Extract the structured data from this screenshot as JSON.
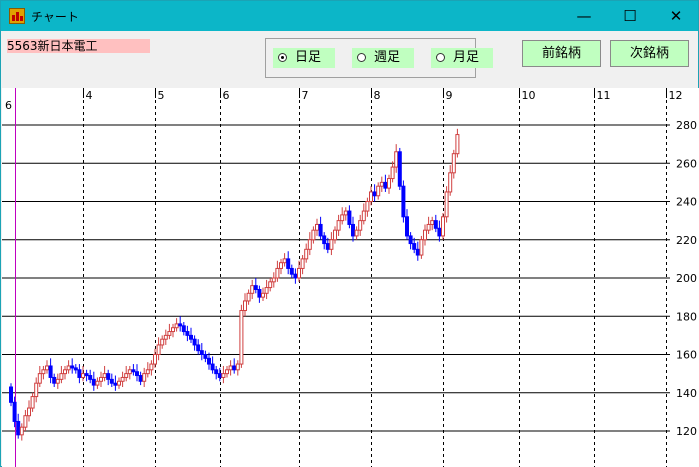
{
  "window": {
    "title": "チャート",
    "controls": [
      "minimize-icon",
      "maximize-icon",
      "close-icon"
    ]
  },
  "toolbar": {
    "stock_label": "5563新日本電工",
    "periods": [
      {
        "label": "日足",
        "selected": true
      },
      {
        "label": "週足",
        "selected": false
      },
      {
        "label": "月足",
        "selected": false
      }
    ],
    "prev_label": "前銘柄",
    "next_label": "次銘柄"
  },
  "colors": {
    "up": "#d04040",
    "down": "#0000ff",
    "accent": "#0cb6c8",
    "cursor": "#c000c0"
  },
  "chart_data": {
    "type": "candlestick",
    "ylim": [
      110,
      290
    ],
    "y_ticks": [
      120,
      140,
      160,
      180,
      200,
      220,
      240,
      260,
      280
    ],
    "months": [
      {
        "label": "6",
        "index": 0
      },
      {
        "label": "4",
        "index": 20
      },
      {
        "label": "5",
        "index": 40
      },
      {
        "label": "6",
        "index": 58
      },
      {
        "label": "7",
        "index": 80
      },
      {
        "label": "8",
        "index": 100
      },
      {
        "label": "9",
        "index": 120
      },
      {
        "label": "10",
        "index": 141
      },
      {
        "label": "11",
        "index": 162
      },
      {
        "label": "12",
        "index": 182
      }
    ],
    "closes": [
      135,
      125,
      118,
      122,
      128,
      132,
      138,
      145,
      150,
      152,
      154,
      148,
      145,
      147,
      150,
      152,
      154,
      153,
      152,
      148,
      150,
      149,
      147,
      144,
      146,
      148,
      150,
      147,
      145,
      144,
      146,
      148,
      150,
      152,
      151,
      149,
      146,
      150,
      152,
      155,
      160,
      165,
      168,
      170,
      172,
      174,
      176,
      175,
      172,
      170,
      168,
      165,
      162,
      160,
      158,
      155,
      152,
      150,
      148,
      150,
      152,
      154,
      152,
      155,
      183,
      188,
      192,
      196,
      194,
      190,
      192,
      195,
      198,
      200,
      205,
      208,
      210,
      205,
      202,
      200,
      205,
      210,
      215,
      220,
      225,
      228,
      222,
      218,
      215,
      220,
      225,
      230,
      233,
      235,
      228,
      222,
      225,
      230,
      235,
      240,
      245,
      243,
      248,
      250,
      247,
      252,
      258,
      266,
      248,
      232,
      222,
      218,
      215,
      212,
      220,
      225,
      228,
      230,
      226,
      222,
      232,
      245,
      255,
      265,
      275
    ]
  }
}
